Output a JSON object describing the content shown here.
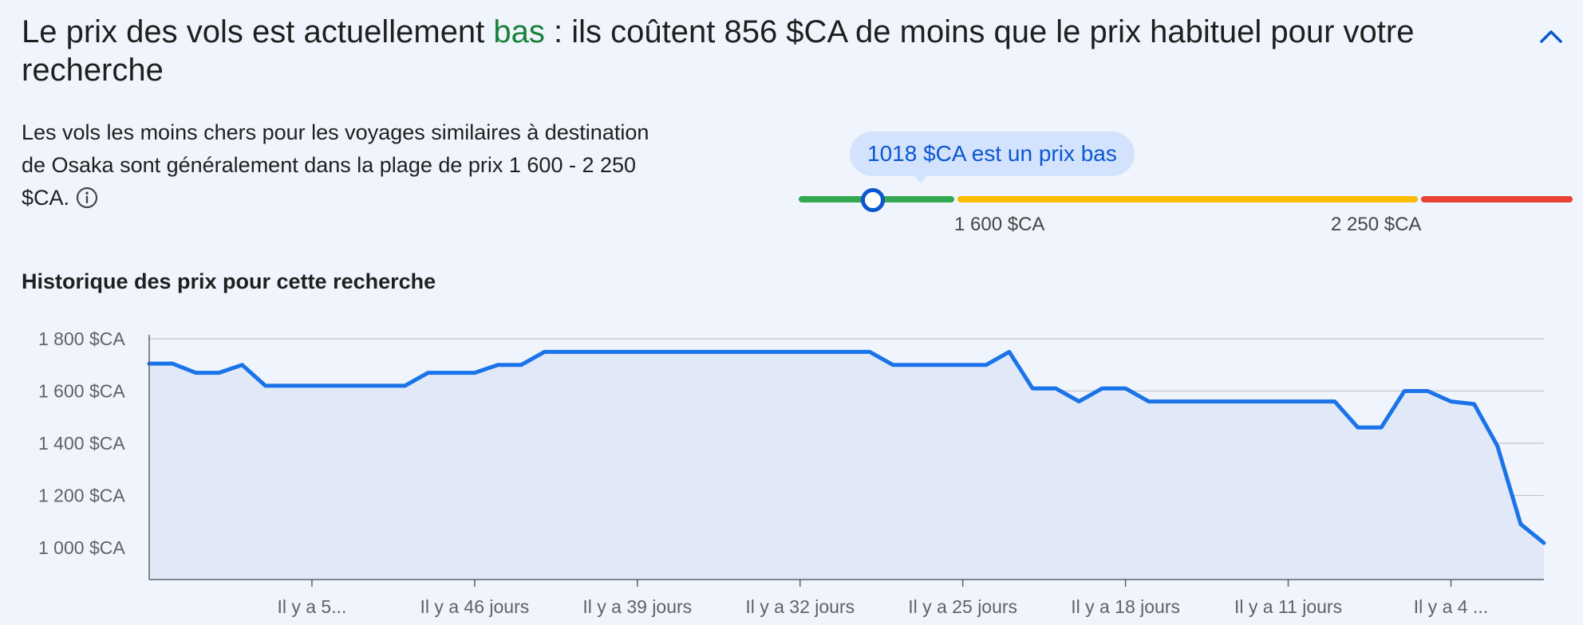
{
  "headline": {
    "prefix": "Le prix des vols est actuellement ",
    "highlight": "bas",
    "suffix": " : ils coûtent 856 $CA de moins que le prix habituel pour votre recherche",
    "highlight_color": "#188038"
  },
  "collapse_icon": "chevron-up-icon",
  "description": {
    "text": "Les vols les moins chers pour les voyages similaires à destination de Osaka sont généralement dans la plage de prix 1 600 - 2 250 $CA.",
    "info_icon": "info-icon"
  },
  "price_range": {
    "bubble": "1018 $CA est un prix bas",
    "current_price": 1018,
    "low_label": "1 600 $CA",
    "high_label": "2 250 $CA",
    "colors": {
      "low": "#34a853",
      "typical": "#fbbc04",
      "high": "#ea4335",
      "accent": "#0b57d0"
    }
  },
  "history_title": "Historique des prix pour cette recherche",
  "chart_data": {
    "type": "area",
    "title": "",
    "xlabel": "",
    "ylabel": "",
    "ylim": [
      880,
      1800
    ],
    "y_ticks": [
      1000,
      1200,
      1400,
      1600,
      1800
    ],
    "y_tick_labels": [
      "1 000 $CA",
      "1 200 $CA",
      "1 400 $CA",
      "1 600 $CA",
      "1 800 $CA"
    ],
    "x_tick_labels": [
      "Il y a 5...",
      "Il y a 46 jours",
      "Il y a 39 jours",
      "Il y a 32 jours",
      "Il y a 25 jours",
      "Il y a 18 jours",
      "Il y a 11 jours",
      "Il y a 4 ..."
    ],
    "x_tick_days_ago": [
      53,
      46,
      39,
      32,
      25,
      18,
      11,
      4
    ],
    "x_range_days_ago": [
      60,
      0
    ],
    "grid": true,
    "line_color": "#1a73e8",
    "fill_color": "#e1e9f8",
    "series": [
      {
        "days_ago": [
          60,
          59,
          58,
          57,
          56,
          55,
          54,
          53,
          52,
          51,
          50,
          49,
          48,
          47,
          46,
          45,
          44,
          43,
          42,
          41,
          40,
          39,
          38,
          37,
          36,
          35,
          34,
          33,
          32,
          31,
          30,
          29,
          28,
          27,
          26,
          25,
          24,
          23,
          22,
          21,
          20,
          19,
          18,
          17,
          16,
          15,
          14,
          13,
          12,
          11,
          10,
          9,
          8,
          7,
          6,
          5,
          4,
          3,
          2,
          1,
          0
        ],
        "values": [
          1705,
          1705,
          1670,
          1670,
          1700,
          1620,
          1620,
          1620,
          1620,
          1620,
          1620,
          1620,
          1670,
          1670,
          1670,
          1700,
          1700,
          1750,
          1750,
          1750,
          1750,
          1750,
          1750,
          1750,
          1750,
          1750,
          1750,
          1750,
          1750,
          1750,
          1750,
          1750,
          1700,
          1700,
          1700,
          1700,
          1700,
          1750,
          1610,
          1610,
          1560,
          1610,
          1610,
          1560,
          1560,
          1560,
          1560,
          1560,
          1560,
          1560,
          1560,
          1560,
          1460,
          1460,
          1600,
          1600,
          1560,
          1550,
          1390,
          1090,
          1018
        ]
      }
    ]
  }
}
